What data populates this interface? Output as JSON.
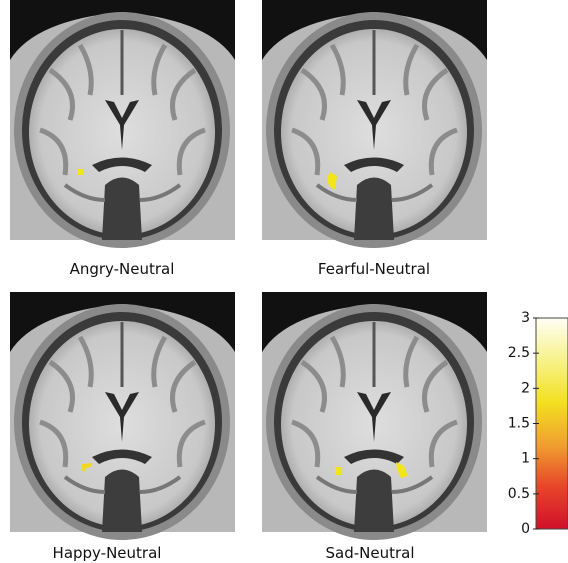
{
  "panels": [
    {
      "label": "Angry-Neutral"
    },
    {
      "label": "Fearful-Neutral"
    },
    {
      "label": "Happy-Neutral"
    },
    {
      "label": "Sad-Neutral"
    }
  ],
  "colorbar": {
    "lim": [
      0,
      3
    ],
    "ticks": [
      0,
      0.5,
      1,
      1.5,
      2,
      2.5,
      3
    ]
  }
}
